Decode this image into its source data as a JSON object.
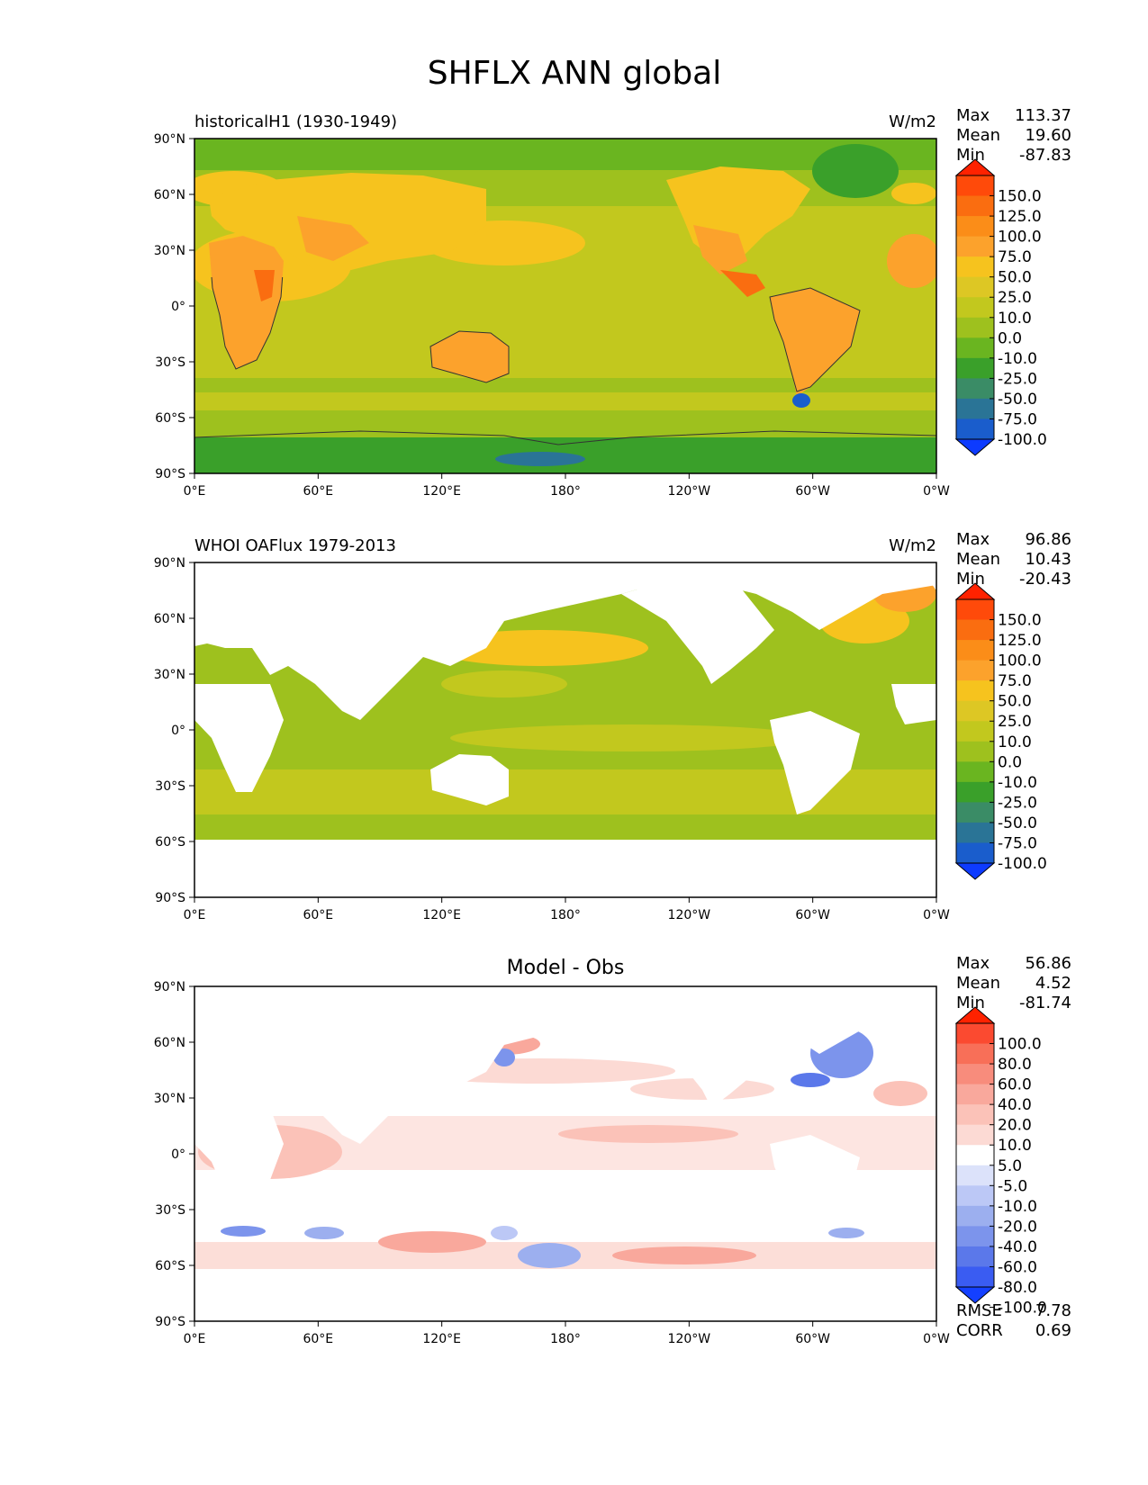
{
  "figure": {
    "title": "SHFLX ANN global"
  },
  "axes": {
    "lat_ticks": [
      "90°N",
      "60°N",
      "30°N",
      "0°",
      "30°S",
      "60°S",
      "90°S"
    ],
    "lon_ticks": [
      "0°E",
      "60°E",
      "120°E",
      "180°",
      "120°W",
      "60°W",
      "0°W"
    ]
  },
  "panels": [
    {
      "left_title": "historicalH1 (1930-1949)",
      "center_title": "",
      "units": "W/m2",
      "stats": [
        {
          "label": "Max",
          "value": "113.37"
        },
        {
          "label": "Mean",
          "value": "19.60"
        },
        {
          "label": "Min",
          "value": "-87.83"
        }
      ],
      "colorbar_levels": [
        "150.0",
        "125.0",
        "100.0",
        "75.0",
        "50.0",
        "25.0",
        "10.0",
        "0.0",
        "-10.0",
        "-25.0",
        "-50.0",
        "-75.0",
        "-100.0"
      ],
      "colorbar_colors": [
        "#ff2200",
        "#ff4a0a",
        "#fa6d10",
        "#fb8d18",
        "#fca22c",
        "#f6c31e",
        "#ddc724",
        "#c2c81e",
        "#9ec11e",
        "#6ab520",
        "#3aa02a",
        "#3a8c66",
        "#2a7496",
        "#1a5dcc",
        "#0d3bff"
      ],
      "field": "model",
      "footer_stats": []
    },
    {
      "left_title": "WHOI OAFlux 1979-2013",
      "center_title": "",
      "units": "W/m2",
      "stats": [
        {
          "label": "Max",
          "value": "96.86"
        },
        {
          "label": "Mean",
          "value": "10.43"
        },
        {
          "label": "Min",
          "value": "-20.43"
        }
      ],
      "colorbar_levels": [
        "150.0",
        "125.0",
        "100.0",
        "75.0",
        "50.0",
        "25.0",
        "10.0",
        "0.0",
        "-10.0",
        "-25.0",
        "-50.0",
        "-75.0",
        "-100.0"
      ],
      "colorbar_colors": [
        "#ff2200",
        "#ff4a0a",
        "#fa6d10",
        "#fb8d18",
        "#fca22c",
        "#f6c31e",
        "#ddc724",
        "#c2c81e",
        "#9ec11e",
        "#6ab520",
        "#3aa02a",
        "#3a8c66",
        "#2a7496",
        "#1a5dcc",
        "#0d3bff"
      ],
      "field": "obs",
      "footer_stats": []
    },
    {
      "left_title": "",
      "center_title": "Model - Obs",
      "units": "",
      "stats": [
        {
          "label": "Max",
          "value": "56.86"
        },
        {
          "label": "Mean",
          "value": "4.52"
        },
        {
          "label": "Min",
          "value": "-81.74"
        }
      ],
      "colorbar_levels": [
        "100.0",
        "80.0",
        "60.0",
        "40.0",
        "20.0",
        "10.0",
        "5.0",
        "-5.0",
        "-10.0",
        "-20.0",
        "-40.0",
        "-60.0",
        "-80.0",
        "-100.0"
      ],
      "colorbar_colors": [
        "#ff2200",
        "#fb4a30",
        "#f86f58",
        "#f88c7c",
        "#f9a89c",
        "#fbc2b8",
        "#fcdad4",
        "#ffffff",
        "#dce2fa",
        "#bcc8f6",
        "#9cafef",
        "#7c94ec",
        "#5b78ea",
        "#3a5cf2",
        "#1440ff"
      ],
      "field": "diff",
      "footer_stats": [
        {
          "label": "RMSE",
          "value": "7.78"
        },
        {
          "label": "CORR",
          "value": "0.69"
        }
      ]
    }
  ],
  "chart_data": {
    "type": "heatmap",
    "title": "SHFLX ANN global",
    "variable": "SHFLX",
    "season": "ANN",
    "region": "global",
    "units": "W/m2",
    "projection": "PlateCarree, lon 0 to 360, lat -90 to 90",
    "xlim": [
      0,
      360
    ],
    "ylim": [
      -90,
      90
    ],
    "panels": [
      {
        "name": "historicalH1 (1930-1949)",
        "max": 113.37,
        "mean": 19.6,
        "min": -87.83,
        "levels": [
          -100,
          -75,
          -50,
          -25,
          -10,
          0,
          10,
          25,
          50,
          75,
          100,
          125,
          150
        ],
        "colorbar_extend": "both"
      },
      {
        "name": "WHOI OAFlux 1979-2013",
        "max": 96.86,
        "mean": 10.43,
        "min": -20.43,
        "levels": [
          -100,
          -75,
          -50,
          -25,
          -10,
          0,
          10,
          25,
          50,
          75,
          100,
          125,
          150
        ],
        "colorbar_extend": "both"
      },
      {
        "name": "Model - Obs",
        "max": 56.86,
        "mean": 4.52,
        "min": -81.74,
        "rmse": 7.78,
        "corr": 0.69,
        "levels": [
          -100,
          -80,
          -60,
          -40,
          -20,
          -10,
          -5,
          5,
          10,
          20,
          40,
          60,
          80,
          100
        ],
        "colorbar_extend": "both"
      }
    ]
  }
}
